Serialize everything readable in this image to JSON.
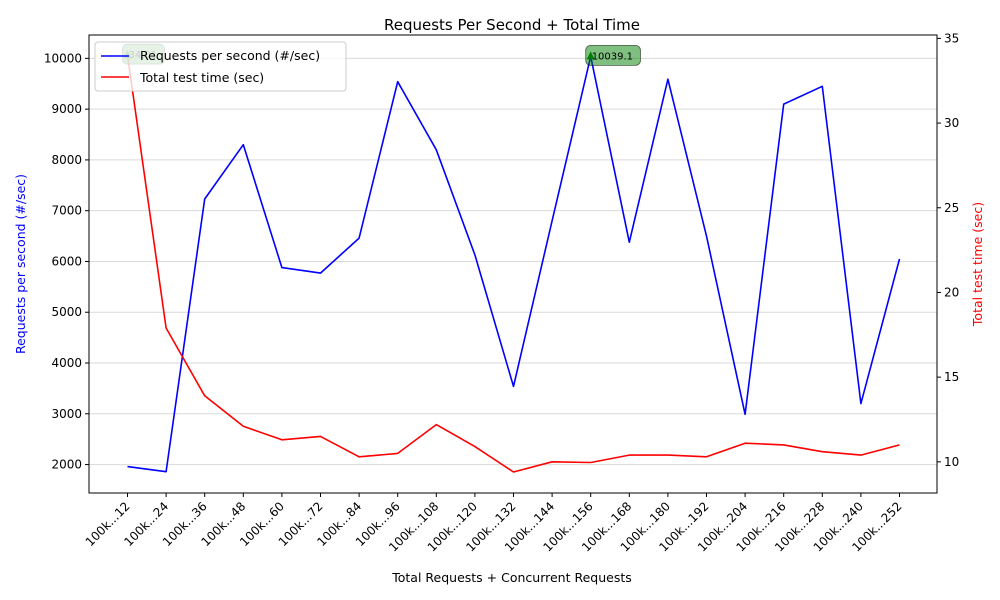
{
  "chart_data": {
    "type": "line",
    "title": "Requests Per Second + Total Time",
    "xlabel": "Total Requests + Concurrent Requests",
    "ylabel_left": "Requests per second (#/sec)",
    "ylabel_right": "Total test time (sec)",
    "categories": [
      "100k...12",
      "100k...24",
      "100k...36",
      "100k...48",
      "100k...60",
      "100k...72",
      "100k...84",
      "100k...96",
      "100k...108",
      "100k...120",
      "100k...132",
      "100k...144",
      "100k...156",
      "100k...168",
      "100k...180",
      "100k...192",
      "100k...204",
      "100k...216",
      "100k...228",
      "100k...240",
      "100k...252"
    ],
    "series": [
      {
        "name": "Requests per second (#/sec)",
        "axis": "left",
        "color": "#0000ff",
        "values": [
          1960,
          1860,
          7230,
          8300,
          5880,
          5770,
          6460,
          9540,
          8200,
          6130,
          3540,
          6800,
          10039.1,
          6380,
          9590,
          6500,
          2990,
          9100,
          9450,
          3200,
          6050
        ]
      },
      {
        "name": "Total test time (sec)",
        "axis": "right",
        "color": "#ff0000",
        "values": [
          34.01,
          17.9,
          13.9,
          12.1,
          11.3,
          11.5,
          10.3,
          10.5,
          12.2,
          10.9,
          9.4,
          10.0,
          9.96,
          10.4,
          10.4,
          10.3,
          11.1,
          11.0,
          10.6,
          10.4,
          11.0
        ]
      }
    ],
    "ylim_left": [
      1440,
      10460
    ],
    "yticks_left": [
      2000,
      3000,
      4000,
      5000,
      6000,
      7000,
      8000,
      9000,
      10000
    ],
    "ylim_right": [
      8.16,
      35.2
    ],
    "yticks_right": [
      10,
      15,
      20,
      25,
      30,
      35
    ],
    "annotations": [
      {
        "text": "34.01",
        "category_index": 0,
        "series": 1
      },
      {
        "text": "10039.1",
        "category_index": 12,
        "series": 0
      }
    ],
    "annotation_color": "#008000",
    "grid": "horizontal",
    "legend_position": "top-left"
  }
}
